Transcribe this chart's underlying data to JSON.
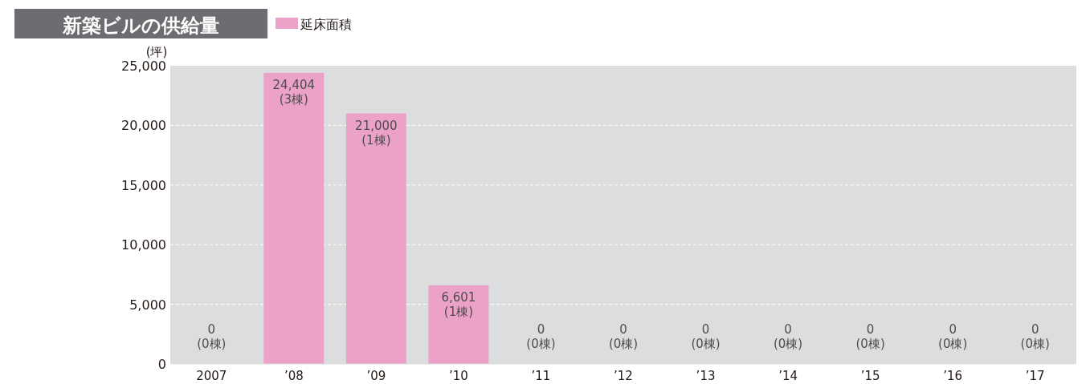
{
  "chart_data": {
    "type": "bar",
    "title": "新築ビルの供給量",
    "ylabel": "(坪)",
    "categories": [
      "2007",
      "’08",
      "’09",
      "’10",
      "’11",
      "’12",
      "’13",
      "’14",
      "’15",
      "’16",
      "’17"
    ],
    "series": [
      {
        "name": "延床面積",
        "color": "#eba1c8",
        "values": [
          0,
          24404,
          21000,
          6601,
          0,
          0,
          0,
          0,
          0,
          0,
          0
        ],
        "value_labels": [
          "0\n(0棟)",
          "24,404\n(3棟)",
          "21,000\n(1棟)",
          "6,601\n(1棟)",
          "0\n(0棟)",
          "0\n(0棟)",
          "0\n(0棟)",
          "0\n(0棟)",
          "0\n(0棟)",
          "0\n(0棟)",
          "0\n(0棟)"
        ]
      }
    ],
    "ylim": [
      0,
      25000
    ],
    "yticks": [
      {
        "value": 0,
        "label": "0"
      },
      {
        "value": 5000,
        "label": "5,000"
      },
      {
        "value": 10000,
        "label": "10,000"
      },
      {
        "value": 15000,
        "label": "15,000"
      },
      {
        "value": 20000,
        "label": "20,000"
      },
      {
        "value": 25000,
        "label": "25,000"
      }
    ],
    "grid": "y",
    "legend": "top left"
  }
}
